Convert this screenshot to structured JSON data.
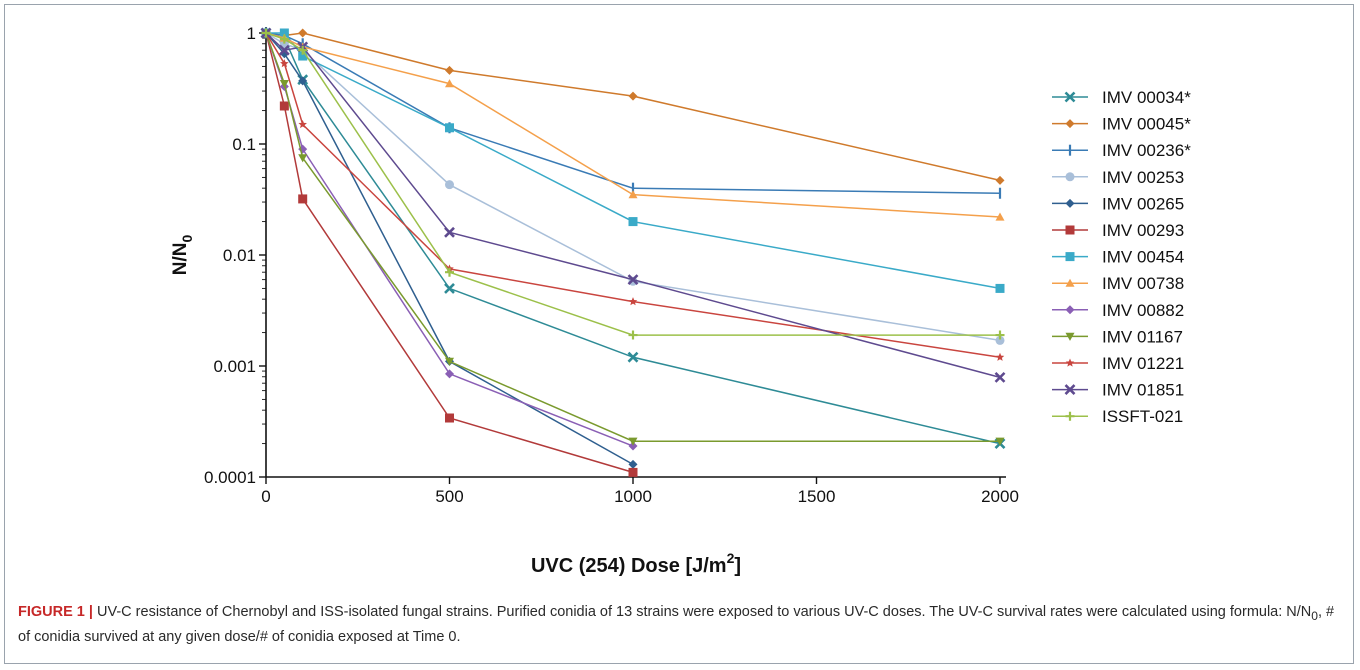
{
  "chart_data": {
    "type": "line",
    "title": "",
    "xlabel_main": "UVC (254) Dose [J/m",
    "xlabel_sup": "2",
    "xlabel_tail": "]",
    "ylabel_main": "N/N",
    "ylabel_sub": "0",
    "yscale": "log",
    "xlim": [
      0,
      2000
    ],
    "ylim": [
      0.0001,
      1
    ],
    "xticks": [
      0,
      500,
      1000,
      1500,
      2000
    ],
    "xtick_labels": [
      "0",
      "500",
      "1000",
      "1500",
      "2000"
    ],
    "yticks": [
      0.0001,
      0.001,
      0.01,
      0.1,
      1
    ],
    "ytick_labels": [
      "0.0001",
      "0.001",
      "0.01",
      "0.1",
      "1"
    ],
    "grid": false,
    "legend_position": "right",
    "series": [
      {
        "name": "IMV 00034*",
        "color": "#2e8b96",
        "marker": "x",
        "points": [
          [
            0,
            1
          ],
          [
            50,
            0.9
          ],
          [
            100,
            0.38
          ],
          [
            500,
            0.005
          ],
          [
            1000,
            0.0012
          ],
          [
            2000,
            0.0002
          ]
        ]
      },
      {
        "name": "IMV 00045*",
        "color": "#cf7a2c",
        "marker": "diamond",
        "points": [
          [
            0,
            1
          ],
          [
            50,
            0.95
          ],
          [
            100,
            1
          ],
          [
            500,
            0.46
          ],
          [
            1000,
            0.27
          ],
          [
            2000,
            0.047
          ]
        ]
      },
      {
        "name": "IMV 00236*",
        "color": "#3a7bb5",
        "marker": "bar",
        "points": [
          [
            0,
            1
          ],
          [
            50,
            0.95
          ],
          [
            100,
            0.8
          ],
          [
            500,
            0.14
          ],
          [
            1000,
            0.04
          ],
          [
            2000,
            0.036
          ]
        ]
      },
      {
        "name": "IMV 00253",
        "color": "#a9bfd9",
        "marker": "circle",
        "points": [
          [
            0,
            1
          ],
          [
            50,
            0.8
          ],
          [
            100,
            0.7
          ],
          [
            500,
            0.043
          ],
          [
            1000,
            0.0058
          ],
          [
            2000,
            0.0017
          ]
        ]
      },
      {
        "name": "IMV 00265",
        "color": "#2f5f8f",
        "marker": "diamond",
        "points": [
          [
            0,
            1
          ],
          [
            50,
            0.65
          ],
          [
            100,
            0.37
          ],
          [
            500,
            0.0011
          ],
          [
            1000,
            0.00013
          ]
        ]
      },
      {
        "name": "IMV 00293",
        "color": "#b23a3a",
        "marker": "square",
        "points": [
          [
            0,
            1
          ],
          [
            50,
            0.22
          ],
          [
            100,
            0.032
          ],
          [
            500,
            0.00034
          ],
          [
            1000,
            0.00011
          ]
        ]
      },
      {
        "name": "IMV 00454",
        "color": "#3aaac8",
        "marker": "square",
        "points": [
          [
            0,
            1
          ],
          [
            50,
            1
          ],
          [
            100,
            0.62
          ],
          [
            500,
            0.14
          ],
          [
            1000,
            0.02
          ],
          [
            2000,
            0.005
          ]
        ]
      },
      {
        "name": "IMV 00738",
        "color": "#f4a04b",
        "marker": "triangle-up",
        "points": [
          [
            0,
            1
          ],
          [
            50,
            0.9
          ],
          [
            100,
            0.75
          ],
          [
            500,
            0.35
          ],
          [
            1000,
            0.035
          ],
          [
            2000,
            0.022
          ]
        ]
      },
      {
        "name": "IMV 00882",
        "color": "#8a5fb5",
        "marker": "diamond",
        "points": [
          [
            0,
            1
          ],
          [
            50,
            0.33
          ],
          [
            100,
            0.09
          ],
          [
            500,
            0.00085
          ],
          [
            1000,
            0.00019
          ]
        ]
      },
      {
        "name": "IMV 01167",
        "color": "#7a9a2e",
        "marker": "triangle-down",
        "points": [
          [
            0,
            1
          ],
          [
            50,
            0.35
          ],
          [
            100,
            0.075
          ],
          [
            500,
            0.0011
          ],
          [
            1000,
            0.00021
          ],
          [
            2000,
            0.00021
          ]
        ]
      },
      {
        "name": "IMV 01221",
        "color": "#c9453f",
        "marker": "star",
        "points": [
          [
            0,
            1
          ],
          [
            50,
            0.53
          ],
          [
            100,
            0.15
          ],
          [
            500,
            0.0075
          ],
          [
            1000,
            0.0038
          ],
          [
            2000,
            0.0012
          ]
        ]
      },
      {
        "name": "IMV 01851",
        "color": "#5e4a8f",
        "marker": "x",
        "points": [
          [
            0,
            1
          ],
          [
            50,
            0.7
          ],
          [
            100,
            0.75
          ],
          [
            500,
            0.016
          ],
          [
            1000,
            0.006
          ],
          [
            2000,
            0.00079
          ]
        ]
      },
      {
        "name": "ISSFT-021",
        "color": "#9cc04a",
        "marker": "plus",
        "points": [
          [
            0,
            1
          ],
          [
            50,
            0.88
          ],
          [
            100,
            0.7
          ],
          [
            500,
            0.007
          ],
          [
            1000,
            0.0019
          ],
          [
            2000,
            0.0019
          ]
        ]
      }
    ]
  },
  "caption": {
    "label": "FIGURE 1 |",
    "text": "UV-C resistance of Chernobyl and ISS-isolated fungal strains. Purified conidia of 13 strains were exposed to various UV-C doses. The UV-C survival rates were calculated using formula: N/N",
    "sub": "0",
    "tail": ", # of conidia survived at any given dose/# of conidia exposed at Time 0."
  }
}
